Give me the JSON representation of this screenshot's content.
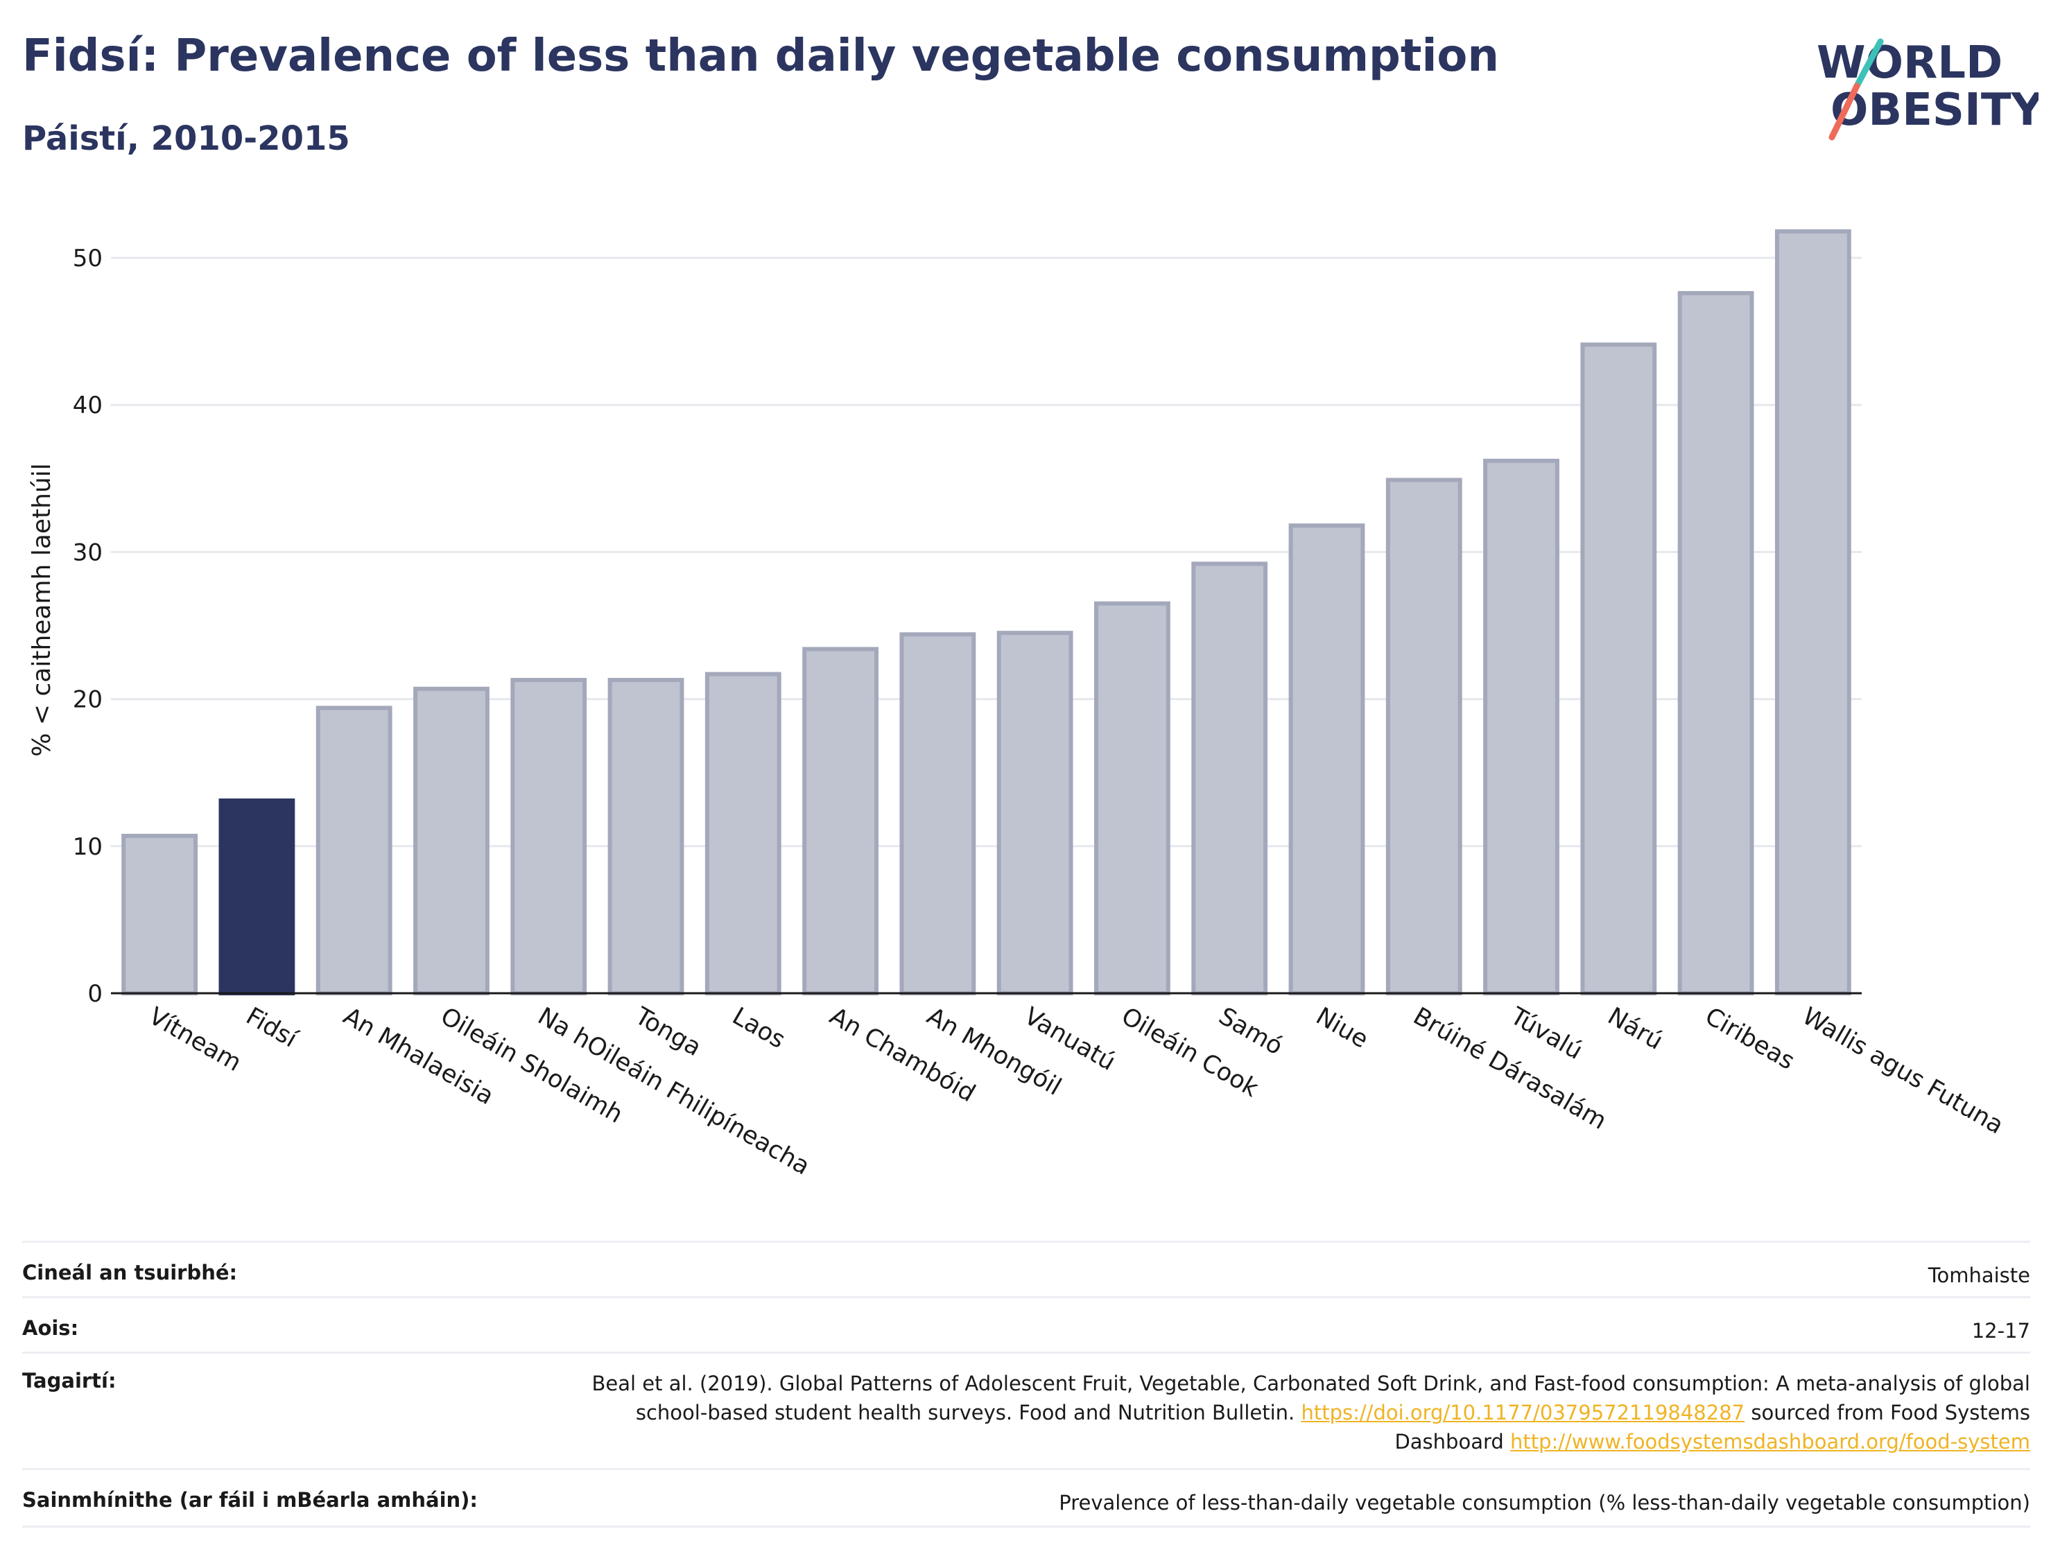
{
  "header": {
    "title": "Fidsí: Prevalence of less than daily vegetable consumption",
    "subtitle": "Páistí, 2010-2015"
  },
  "logo": {
    "line1": "WORLD",
    "line2": "OBESITY",
    "color": "#2b3560",
    "accent_teal": "#3ec1b9",
    "accent_red": "#ee6b5b"
  },
  "chart_data": {
    "type": "bar",
    "ylabel": "% < caitheamh laethúil",
    "ylim": [
      0,
      54
    ],
    "yticks": [
      0,
      10,
      20,
      30,
      40,
      50
    ],
    "grid": true,
    "categories": [
      "Vítneam",
      "Fidsí",
      "An Mhalaeisia",
      "Oileáin Sholaimh",
      "Na hOileáin Fhilipíneacha",
      "Tonga",
      "Laos",
      "An Chambóid",
      "An Mhongóil",
      "Vanuatú",
      "Oileáin Cook",
      "Samó",
      "Niue",
      "Brúiné Dárasalám",
      "Túvalú",
      "Nárú",
      "Ciribeas",
      "Wallis agus Futuna"
    ],
    "values": [
      10.7,
      13.1,
      19.4,
      20.7,
      21.3,
      21.3,
      21.7,
      23.4,
      24.4,
      24.5,
      26.5,
      29.2,
      31.8,
      34.9,
      36.2,
      44.1,
      47.6,
      51.8
    ],
    "highlight": "Fidsí",
    "colors": {
      "bar": "#c0c3d0",
      "bar_stroke": "#a3a8bb",
      "highlight": "#2b3560"
    }
  },
  "info_table": {
    "survey_type": {
      "label": "Cineál an tsuirbhé:",
      "value": "Tomhaiste"
    },
    "age": {
      "label": "Aois:",
      "value": "12-17"
    },
    "references": {
      "label": "Tagairtí:",
      "text1": "Beal et al. (2019). Global Patterns of Adolescent Fruit, Vegetable, Carbonated Soft Drink, and Fast-food consumption: A meta-analysis of global school-based student health surveys. Food and Nutrition Bulletin. ",
      "link1": "https://doi.org/10.1177/0379572119848287",
      "text2": " sourced from Food Systems Dashboard ",
      "link2": "http://www.foodsystemsdashboard.org/food-system"
    },
    "definitions": {
      "label": "Sainmhínithe (ar fáil i mBéarla amháin):",
      "value": "Prevalence of less-than-daily vegetable consumption (% less-than-daily vegetable consumption)"
    }
  }
}
